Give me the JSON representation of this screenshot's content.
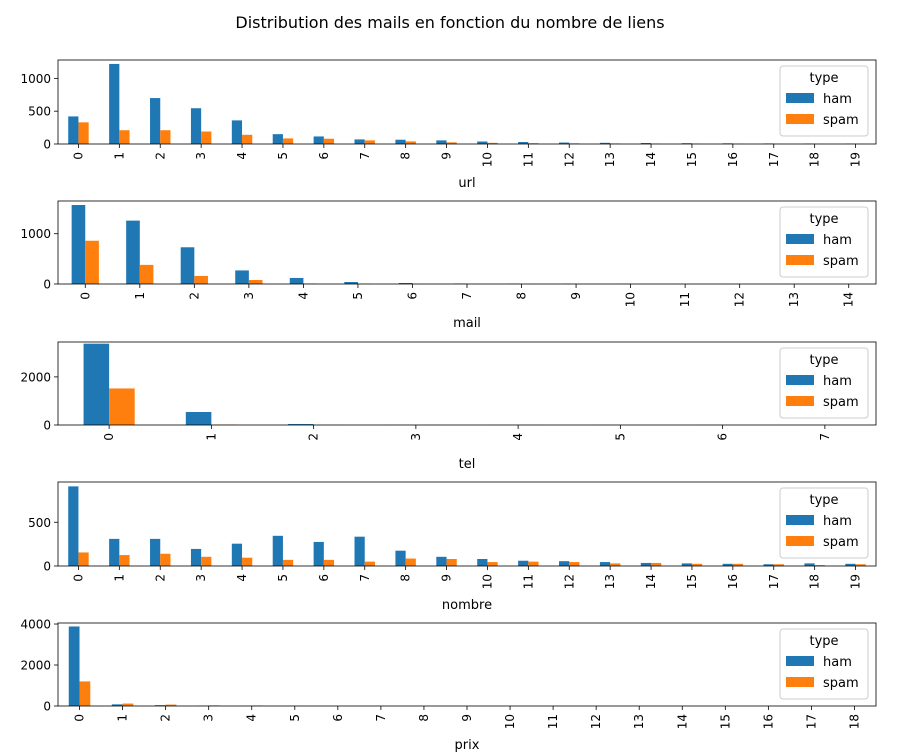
{
  "figure": {
    "title": "Distribution des mails en fonction du nombre de liens"
  },
  "colors": {
    "ham": "#1f77b4",
    "spam": "#ff7f0e"
  },
  "legend": {
    "title": "type",
    "placement": "right"
  },
  "chart_data": [
    {
      "type": "bar",
      "xlabel": "url",
      "categories": [
        "0",
        "1",
        "2",
        "3",
        "4",
        "5",
        "6",
        "7",
        "8",
        "9",
        "10",
        "11",
        "12",
        "13",
        "14",
        "15",
        "16",
        "17",
        "18",
        "19"
      ],
      "yticks": [
        0,
        500,
        1000
      ],
      "ylim": [
        0,
        1280
      ],
      "series": [
        {
          "name": "ham",
          "values": [
            420,
            1220,
            700,
            545,
            360,
            150,
            115,
            70,
            65,
            55,
            38,
            30,
            22,
            18,
            15,
            12,
            10,
            8,
            6,
            5
          ]
        },
        {
          "name": "spam",
          "values": [
            330,
            210,
            210,
            190,
            140,
            85,
            80,
            55,
            40,
            25,
            18,
            12,
            10,
            8,
            6,
            5,
            4,
            3,
            2,
            2
          ]
        }
      ]
    },
    {
      "type": "bar",
      "xlabel": "mail",
      "categories": [
        "0",
        "1",
        "2",
        "3",
        "4",
        "5",
        "6",
        "7",
        "8",
        "9",
        "10",
        "11",
        "12",
        "13",
        "14"
      ],
      "yticks": [
        0,
        1000
      ],
      "ylim": [
        0,
        1650
      ],
      "series": [
        {
          "name": "ham",
          "values": [
            1570,
            1260,
            730,
            270,
            120,
            40,
            20,
            8,
            5,
            4,
            3,
            2,
            2,
            1,
            1
          ]
        },
        {
          "name": "spam",
          "values": [
            860,
            380,
            160,
            80,
            10,
            5,
            2,
            1,
            1,
            0,
            0,
            0,
            0,
            0,
            0
          ]
        }
      ]
    },
    {
      "type": "bar",
      "xlabel": "tel",
      "categories": [
        "0",
        "1",
        "2",
        "3",
        "4",
        "5",
        "6",
        "7"
      ],
      "yticks": [
        0,
        2000
      ],
      "ylim": [
        0,
        3450
      ],
      "series": [
        {
          "name": "ham",
          "values": [
            3380,
            540,
            40,
            5,
            3,
            2,
            1,
            1
          ]
        },
        {
          "name": "spam",
          "values": [
            1520,
            15,
            5,
            2,
            1,
            0,
            0,
            0
          ]
        }
      ]
    },
    {
      "type": "bar",
      "xlabel": "nombre",
      "categories": [
        "0",
        "1",
        "2",
        "3",
        "4",
        "5",
        "6",
        "7",
        "8",
        "9",
        "10",
        "11",
        "12",
        "13",
        "14",
        "15",
        "16",
        "17",
        "18",
        "19"
      ],
      "yticks": [
        0,
        500
      ],
      "ylim": [
        0,
        960
      ],
      "series": [
        {
          "name": "ham",
          "values": [
            910,
            310,
            310,
            195,
            255,
            345,
            275,
            335,
            175,
            105,
            80,
            60,
            55,
            45,
            35,
            30,
            25,
            20,
            30,
            25
          ]
        },
        {
          "name": "spam",
          "values": [
            155,
            125,
            140,
            105,
            95,
            70,
            70,
            50,
            85,
            80,
            45,
            50,
            45,
            30,
            35,
            25,
            25,
            20,
            10,
            20
          ]
        }
      ]
    },
    {
      "type": "bar",
      "xlabel": "prix",
      "categories": [
        "0",
        "1",
        "2",
        "3",
        "4",
        "5",
        "6",
        "7",
        "8",
        "9",
        "10",
        "11",
        "12",
        "13",
        "14",
        "15",
        "16",
        "17",
        "18"
      ],
      "yticks": [
        0,
        2000,
        4000
      ],
      "ylim": [
        0,
        4050
      ],
      "series": [
        {
          "name": "ham",
          "values": [
            3880,
            80,
            40,
            10,
            5,
            3,
            2,
            2,
            1,
            1,
            1,
            1,
            1,
            1,
            1,
            1,
            1,
            1,
            1
          ]
        },
        {
          "name": "spam",
          "values": [
            1200,
            120,
            70,
            30,
            25,
            5,
            3,
            2,
            1,
            1,
            1,
            1,
            1,
            0,
            0,
            0,
            0,
            0,
            0
          ]
        }
      ]
    }
  ]
}
